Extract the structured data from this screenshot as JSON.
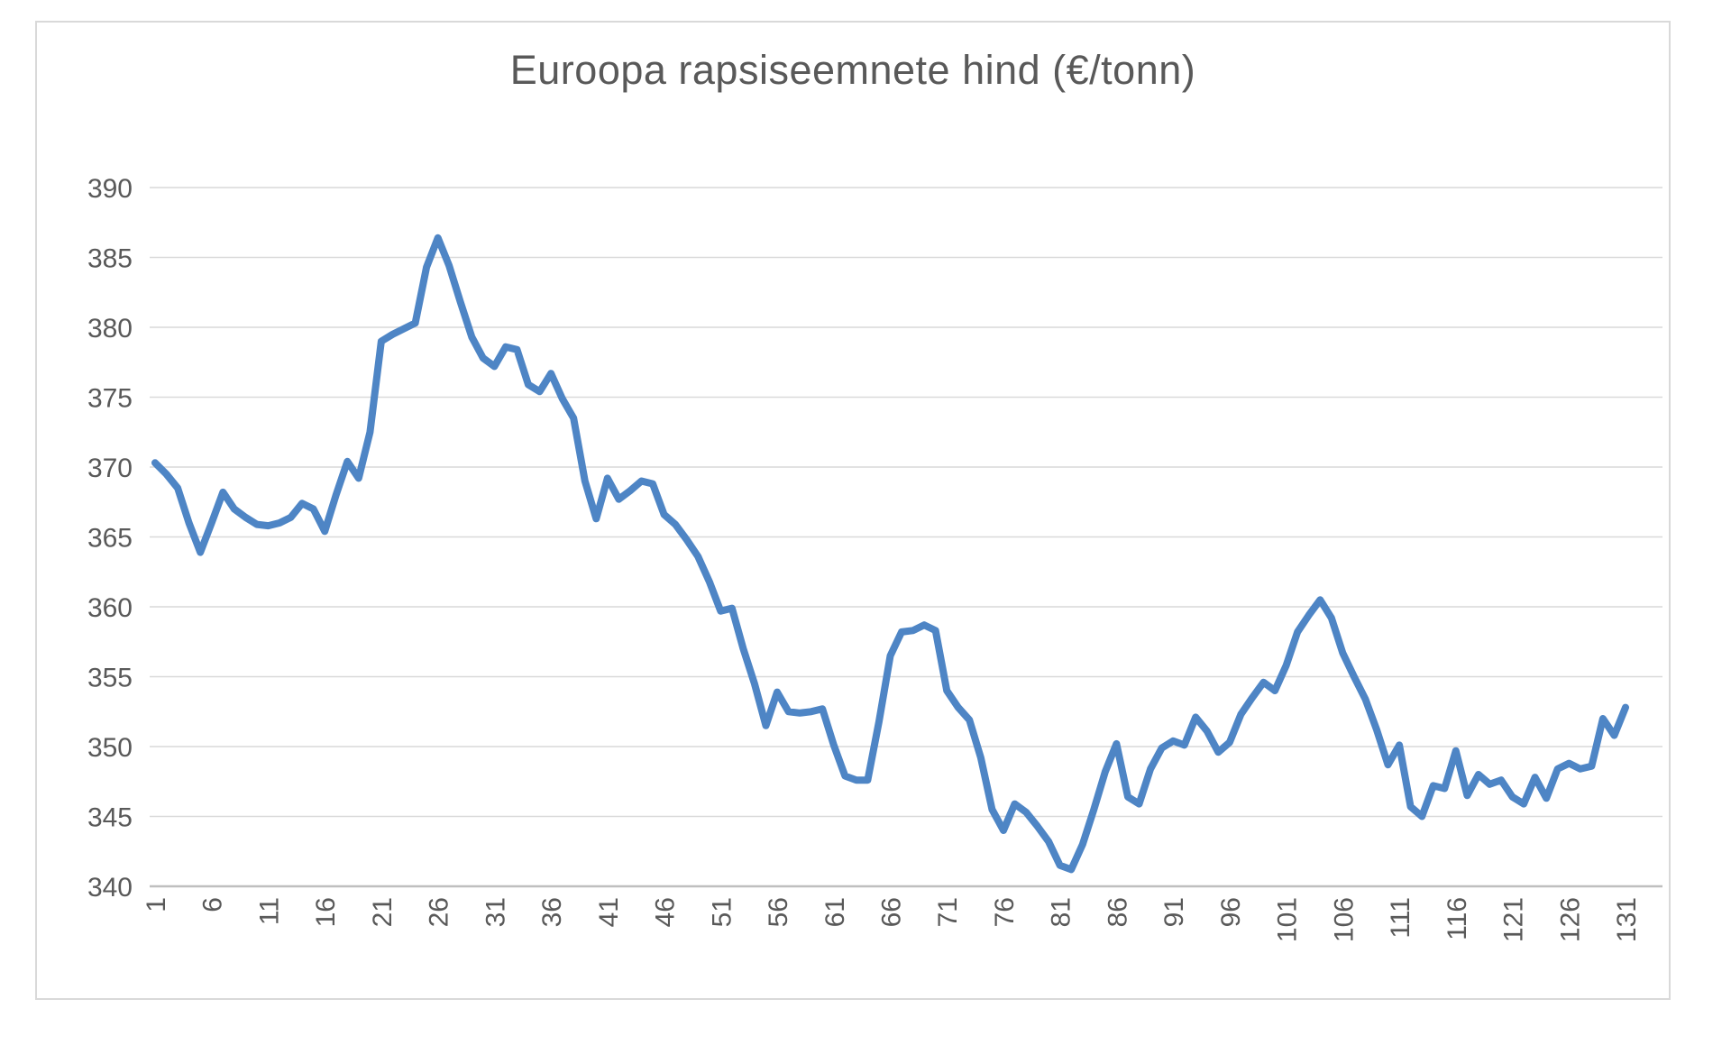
{
  "window": {
    "background_color": "#FFFFFF",
    "frame_border_color": "#D9D9D9"
  },
  "chart_data": {
    "type": "line",
    "title": "Euroopa rapsiseemnete hind (€/tonn)",
    "xlabel": "",
    "ylabel": "",
    "legend": "none",
    "grid": "horizontal",
    "ylim": [
      340,
      390
    ],
    "y_ticks": [
      390,
      385,
      380,
      375,
      370,
      365,
      360,
      355,
      350,
      345,
      340
    ],
    "x_tick_labels": [
      "1",
      "6",
      "11",
      "16",
      "21",
      "26",
      "31",
      "36",
      "41",
      "46",
      "51",
      "56",
      "61",
      "66",
      "71",
      "76",
      "81",
      "86",
      "91",
      "96",
      "101",
      "106",
      "111",
      "116",
      "121",
      "126",
      "131"
    ],
    "x_tick_step": 5,
    "x_range": [
      1,
      131
    ],
    "series_name": "Euroopa rapsiseemnete hind",
    "values": [
      370.3,
      369.5,
      368.5,
      366.0,
      363.9,
      366.0,
      368.2,
      367.0,
      366.4,
      365.9,
      365.8,
      366.0,
      366.4,
      367.4,
      367.0,
      365.4,
      368.0,
      370.4,
      369.2,
      372.5,
      379.0,
      379.5,
      379.9,
      380.3,
      384.3,
      386.4,
      384.4,
      381.8,
      379.3,
      377.8,
      377.2,
      378.6,
      378.4,
      375.9,
      375.4,
      376.7,
      374.9,
      373.5,
      369.0,
      366.3,
      369.2,
      367.7,
      368.3,
      369.0,
      368.8,
      366.6,
      365.9,
      364.8,
      363.6,
      361.8,
      359.7,
      359.9,
      357.0,
      354.5,
      351.5,
      353.9,
      352.5,
      352.4,
      352.5,
      352.7,
      350.1,
      347.9,
      347.6,
      347.6,
      351.8,
      356.5,
      358.2,
      358.3,
      358.7,
      358.3,
      354.0,
      352.8,
      351.9,
      349.2,
      345.5,
      344.0,
      345.9,
      345.3,
      344.3,
      343.2,
      341.5,
      341.2,
      343.0,
      345.5,
      348.2,
      350.2,
      346.4,
      345.9,
      348.4,
      349.9,
      350.4,
      350.1,
      352.1,
      351.1,
      349.6,
      350.3,
      352.3,
      353.5,
      354.6,
      354.0,
      355.8,
      358.2,
      359.4,
      360.5,
      359.2,
      356.7,
      355.0,
      353.4,
      351.2,
      348.7,
      350.1,
      345.7,
      345.0,
      347.2,
      347.0,
      349.7,
      346.5,
      348.0,
      347.3,
      347.6,
      346.4,
      345.9,
      347.8,
      346.3,
      348.4,
      348.8,
      348.4,
      348.6,
      352.0,
      350.8,
      352.8
    ],
    "line_color": "#4E85C5",
    "gridline_color": "#D9D9D9",
    "axis_line_color": "#BFBFBF",
    "text_color": "#595959"
  }
}
